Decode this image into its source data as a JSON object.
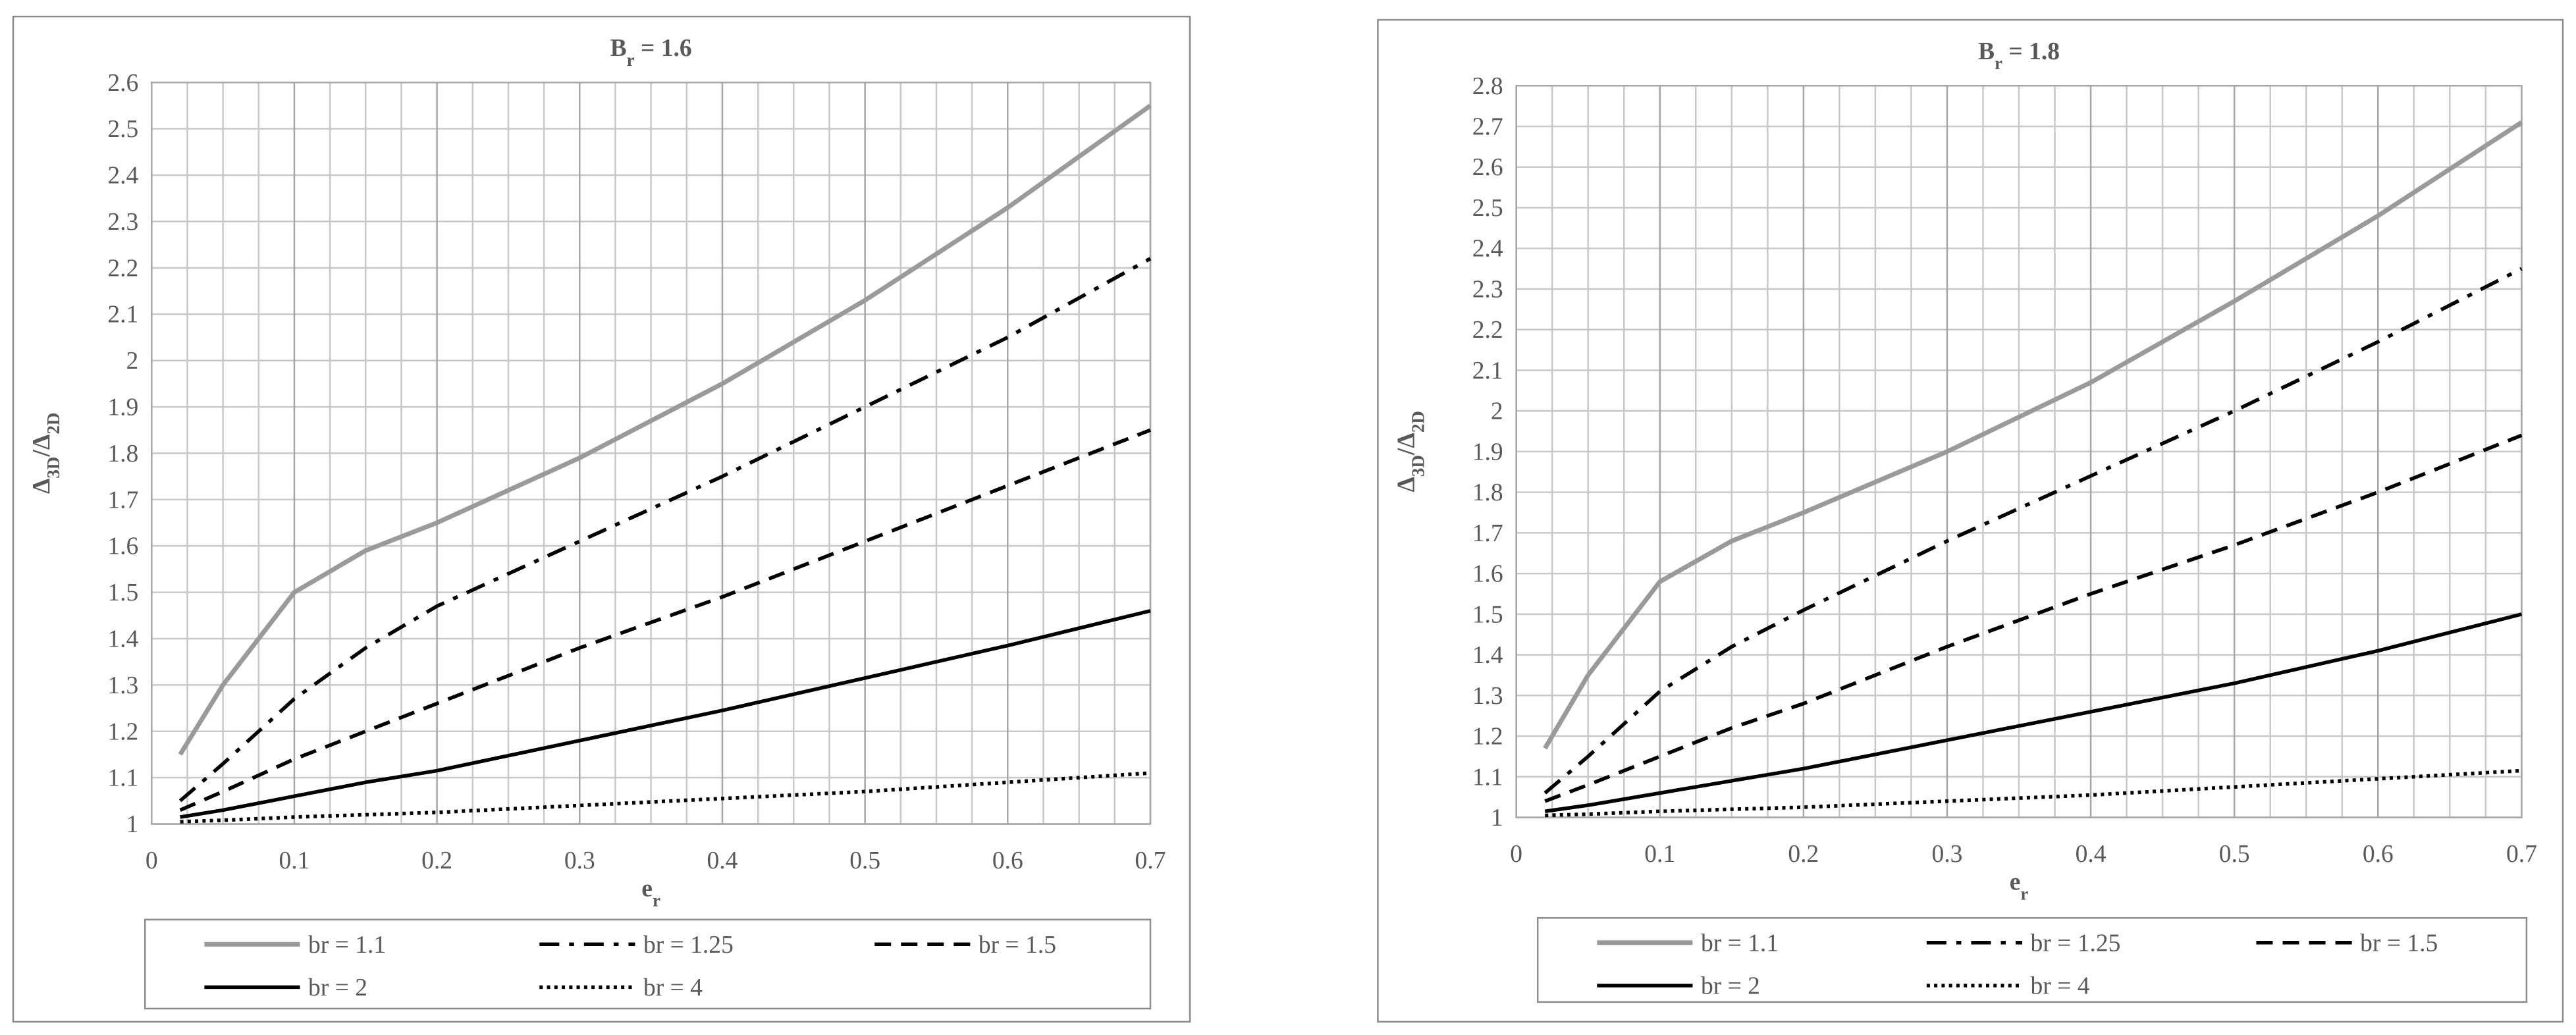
{
  "chart_data": [
    {
      "type": "line",
      "title": [
        "B",
        "r",
        " = 1.6"
      ],
      "x_label": [
        "e",
        "r"
      ],
      "y_label": [
        "Δ",
        "3D",
        "/Δ",
        "2D"
      ],
      "x": [
        0.02,
        0.05,
        0.1,
        0.15,
        0.2,
        0.3,
        0.4,
        0.5,
        0.6,
        0.7
      ],
      "series": [
        {
          "name": "br = 1.1",
          "color": "#9a9a9a",
          "style": "solid",
          "values": [
            1.15,
            1.3,
            1.5,
            1.59,
            1.65,
            1.79,
            1.95,
            2.13,
            2.33,
            2.55
          ]
        },
        {
          "name": "br = 1.25",
          "color": "#000000",
          "style": "dashdot",
          "values": [
            1.05,
            1.13,
            1.27,
            1.38,
            1.47,
            1.61,
            1.75,
            1.9,
            2.05,
            2.22
          ]
        },
        {
          "name": "br = 1.5",
          "color": "#000000",
          "style": "dashed",
          "values": [
            1.03,
            1.07,
            1.14,
            1.2,
            1.26,
            1.38,
            1.49,
            1.61,
            1.73,
            1.85
          ]
        },
        {
          "name": "br = 2",
          "color": "#000000",
          "style": "solid",
          "values": [
            1.015,
            1.03,
            1.06,
            1.09,
            1.115,
            1.18,
            1.245,
            1.315,
            1.385,
            1.46
          ]
        },
        {
          "name": "br = 4",
          "color": "#000000",
          "style": "dotted",
          "values": [
            1.005,
            1.008,
            1.015,
            1.02,
            1.025,
            1.04,
            1.055,
            1.07,
            1.09,
            1.11
          ]
        }
      ],
      "xlim": [
        0,
        0.7
      ],
      "xticks": [
        0,
        0.1,
        0.2,
        0.3,
        0.4,
        0.5,
        0.6,
        0.7
      ],
      "xminorticks": [
        0.025,
        0.05,
        0.075,
        0.125,
        0.15,
        0.175,
        0.225,
        0.25,
        0.275,
        0.325,
        0.35,
        0.375,
        0.425,
        0.45,
        0.475,
        0.525,
        0.55,
        0.575,
        0.625,
        0.65,
        0.675
      ],
      "ylim": [
        1,
        2.6
      ],
      "yticks": [
        1,
        1.1,
        1.2,
        1.3,
        1.4,
        1.5,
        1.6,
        1.7,
        1.8,
        1.9,
        2,
        2.1,
        2.2,
        2.3,
        2.4,
        2.5,
        2.6
      ],
      "grid": true,
      "legend": "bottom"
    },
    {
      "type": "line",
      "title": [
        "B",
        "r",
        " = 1.8"
      ],
      "x_label": [
        "e",
        "r"
      ],
      "y_label": [
        "Δ",
        "3D",
        "/Δ",
        "2D"
      ],
      "x": [
        0.02,
        0.05,
        0.1,
        0.15,
        0.2,
        0.3,
        0.4,
        0.5,
        0.6,
        0.7
      ],
      "series": [
        {
          "name": "br = 1.1",
          "color": "#9a9a9a",
          "style": "solid",
          "values": [
            1.17,
            1.35,
            1.58,
            1.68,
            1.75,
            1.9,
            2.07,
            2.27,
            2.48,
            2.71
          ]
        },
        {
          "name": "br = 1.25",
          "color": "#000000",
          "style": "dashdot",
          "values": [
            1.06,
            1.15,
            1.31,
            1.42,
            1.51,
            1.68,
            1.84,
            2.0,
            2.17,
            2.35
          ]
        },
        {
          "name": "br = 1.5",
          "color": "#000000",
          "style": "dashed",
          "values": [
            1.04,
            1.08,
            1.15,
            1.22,
            1.28,
            1.42,
            1.55,
            1.67,
            1.8,
            1.94
          ]
        },
        {
          "name": "br = 2",
          "color": "#000000",
          "style": "solid",
          "values": [
            1.015,
            1.03,
            1.06,
            1.09,
            1.12,
            1.19,
            1.26,
            1.33,
            1.41,
            1.5
          ]
        },
        {
          "name": "br = 4",
          "color": "#000000",
          "style": "dotted",
          "values": [
            1.005,
            1.008,
            1.015,
            1.02,
            1.025,
            1.04,
            1.055,
            1.075,
            1.095,
            1.115
          ]
        }
      ],
      "xlim": [
        0,
        0.7
      ],
      "xticks": [
        0,
        0.1,
        0.2,
        0.3,
        0.4,
        0.5,
        0.6,
        0.7
      ],
      "xminorticks": [
        0.025,
        0.05,
        0.075,
        0.125,
        0.15,
        0.175,
        0.225,
        0.25,
        0.275,
        0.325,
        0.35,
        0.375,
        0.425,
        0.45,
        0.475,
        0.525,
        0.55,
        0.575,
        0.625,
        0.65,
        0.675
      ],
      "ylim": [
        1,
        2.8
      ],
      "yticks": [
        1,
        1.1,
        1.2,
        1.3,
        1.4,
        1.5,
        1.6,
        1.7,
        1.8,
        1.9,
        2,
        2.1,
        2.2,
        2.3,
        2.4,
        2.5,
        2.6,
        2.7,
        2.8
      ],
      "grid": true,
      "legend": "bottom"
    }
  ]
}
